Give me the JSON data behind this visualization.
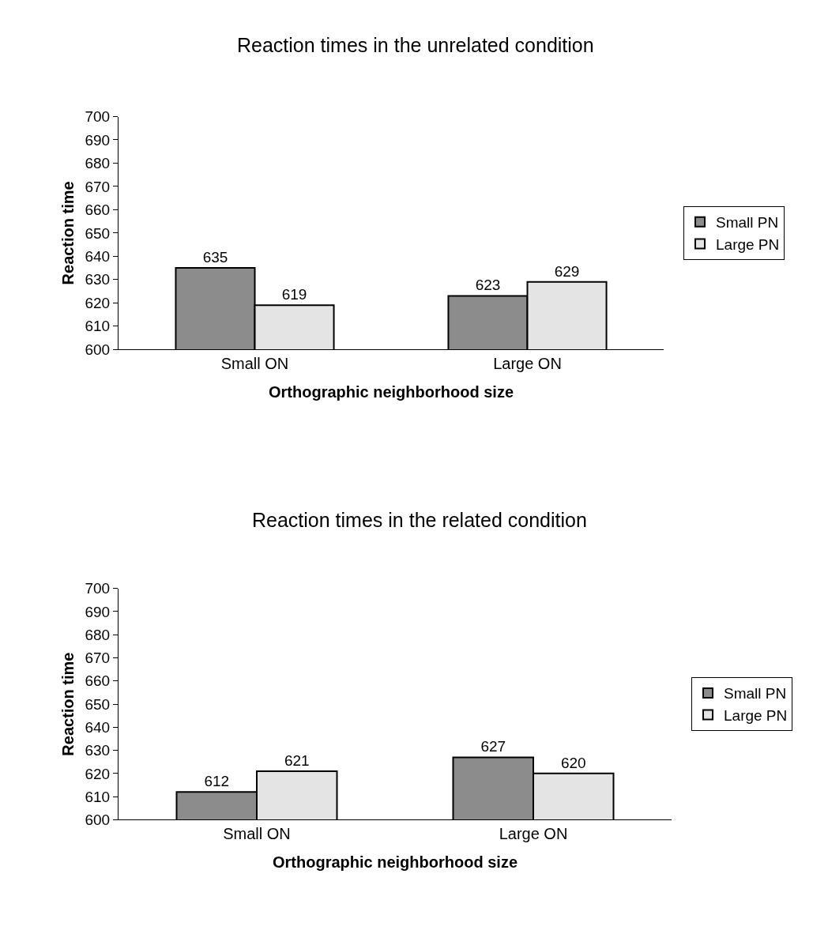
{
  "chart_data": [
    {
      "type": "bar",
      "title": "Reaction times in the unrelated condition",
      "xlabel": "Orthographic neighborhood size",
      "ylabel": "Reaction time",
      "categories": [
        "Small ON",
        "Large ON"
      ],
      "series": [
        {
          "name": "Small PN",
          "color": "#8c8c8c",
          "values": [
            635,
            623
          ]
        },
        {
          "name": "Large PN",
          "color": "#e4e4e4",
          "values": [
            619,
            629
          ]
        }
      ],
      "ylim": [
        600,
        700
      ],
      "yticks": [
        600,
        610,
        620,
        630,
        640,
        650,
        660,
        670,
        680,
        690,
        700
      ],
      "data_labels": true,
      "legend": "right"
    },
    {
      "type": "bar",
      "title": "Reaction times in the related condition",
      "xlabel": "Orthographic neighborhood size",
      "ylabel": "Reaction time",
      "categories": [
        "Small ON",
        "Large ON"
      ],
      "series": [
        {
          "name": "Small PN",
          "color": "#8c8c8c",
          "values": [
            612,
            627
          ]
        },
        {
          "name": "Large PN",
          "color": "#e4e4e4",
          "values": [
            621,
            620
          ]
        }
      ],
      "ylim": [
        600,
        700
      ],
      "yticks": [
        600,
        610,
        620,
        630,
        640,
        650,
        660,
        670,
        680,
        690,
        700
      ],
      "data_labels": true,
      "legend": "right"
    }
  ]
}
